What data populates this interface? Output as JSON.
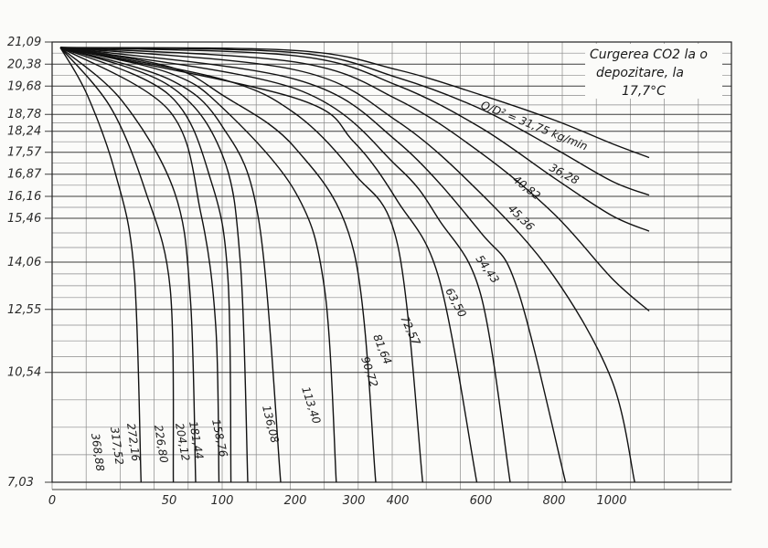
{
  "chart_data": {
    "type": "line",
    "title_lines": [
      "Curgerea CO2 la o",
      "depozitare, la",
      "17,7°C"
    ],
    "y_ticks": [
      "21,09",
      "20,38",
      "19,68",
      "18,78",
      "18,24",
      "17,57",
      "16,87",
      "16,16",
      "15,46",
      "14,06",
      "12,55",
      "10,54",
      "7,03"
    ],
    "x_ticks": [
      "0",
      "50",
      "100",
      "200",
      "300",
      "400",
      "600",
      "800",
      "1000"
    ],
    "grid": true,
    "series": [
      {
        "name": "Q/D² = 31,75 kg/min",
        "points": [
          [
            0,
            21.09
          ],
          [
            200,
            20.82
          ],
          [
            400,
            20.2
          ],
          [
            600,
            19.4
          ],
          [
            800,
            18.6
          ],
          [
            1000,
            17.85
          ],
          [
            1130,
            17.4
          ]
        ]
      },
      {
        "name": "36,28",
        "points": [
          [
            0,
            21.09
          ],
          [
            200,
            20.75
          ],
          [
            400,
            19.95
          ],
          [
            600,
            18.95
          ],
          [
            800,
            17.7
          ],
          [
            1000,
            16.65
          ],
          [
            1130,
            16.2
          ]
        ]
      },
      {
        "name": "40,82",
        "points": [
          [
            0,
            21.09
          ],
          [
            200,
            20.65
          ],
          [
            400,
            19.7
          ],
          [
            600,
            18.35
          ],
          [
            800,
            16.75
          ],
          [
            1000,
            15.55
          ],
          [
            1130,
            15.05
          ]
        ]
      },
      {
        "name": "45,36",
        "points": [
          [
            0,
            21.09
          ],
          [
            200,
            20.45
          ],
          [
            400,
            19.25
          ],
          [
            600,
            17.55
          ],
          [
            800,
            15.6
          ],
          [
            1000,
            13.55
          ],
          [
            1130,
            12.5
          ]
        ]
      },
      {
        "name": "54,43",
        "points": [
          [
            0,
            21.09
          ],
          [
            200,
            20.2
          ],
          [
            400,
            18.55
          ],
          [
            600,
            16.25
          ],
          [
            800,
            13.6
          ],
          [
            1000,
            10.3
          ],
          [
            1080,
            7.03
          ]
        ]
      },
      {
        "name": "63,50",
        "points": [
          [
            0,
            21.09
          ],
          [
            200,
            19.9
          ],
          [
            400,
            17.9
          ],
          [
            600,
            15.0
          ],
          [
            700,
            13.2
          ],
          [
            840,
            7.03
          ]
        ]
      },
      {
        "name": "72,57",
        "points": [
          [
            0,
            21.09
          ],
          [
            200,
            19.6
          ],
          [
            400,
            17.1
          ],
          [
            500,
            15.4
          ],
          [
            600,
            13.0
          ],
          [
            680,
            7.03
          ]
        ]
      },
      {
        "name": "81,64",
        "points": [
          [
            0,
            21.09
          ],
          [
            200,
            19.3
          ],
          [
            300,
            17.9
          ],
          [
            400,
            16.0
          ],
          [
            500,
            13.5
          ],
          [
            590,
            7.03
          ]
        ]
      },
      {
        "name": "90,72",
        "points": [
          [
            0,
            21.09
          ],
          [
            100,
            19.9
          ],
          [
            200,
            18.8
          ],
          [
            300,
            16.9
          ],
          [
            400,
            14.6
          ],
          [
            460,
            7.03
          ]
        ]
      },
      {
        "name": "113,40",
        "points": [
          [
            0,
            21.09
          ],
          [
            50,
            20.3
          ],
          [
            100,
            19.4
          ],
          [
            200,
            17.7
          ],
          [
            300,
            14.4
          ],
          [
            350,
            7.03
          ]
        ]
      },
      {
        "name": "136,08",
        "points": [
          [
            0,
            21.09
          ],
          [
            50,
            20.1
          ],
          [
            100,
            19.0
          ],
          [
            200,
            16.3
          ],
          [
            250,
            13.2
          ],
          [
            270,
            7.03
          ]
        ]
      },
      {
        "name": "158,76",
        "points": [
          [
            0,
            21.09
          ],
          [
            50,
            19.9
          ],
          [
            100,
            18.4
          ],
          [
            150,
            15.4
          ],
          [
            180,
            7.03
          ]
        ]
      },
      {
        "name": "181,44",
        "points": [
          [
            0,
            21.09
          ],
          [
            50,
            19.7
          ],
          [
            100,
            17.5
          ],
          [
            125,
            14.0
          ],
          [
            135,
            7.03
          ]
        ]
      },
      {
        "name": "204,12",
        "points": [
          [
            0,
            21.09
          ],
          [
            50,
            19.4
          ],
          [
            90,
            16.6
          ],
          [
            108,
            13.5
          ],
          [
            112,
            7.03
          ]
        ]
      },
      {
        "name": "226,80",
        "points": [
          [
            0,
            21.09
          ],
          [
            50,
            18.9
          ],
          [
            80,
            15.6
          ],
          [
            94,
            12.0
          ],
          [
            97,
            7.03
          ]
        ]
      },
      {
        "name": "272,16",
        "points": [
          [
            0,
            21.09
          ],
          [
            30,
            19.2
          ],
          [
            55,
            16.3
          ],
          [
            70,
            12.9
          ],
          [
            75,
            7.03
          ]
        ]
      },
      {
        "name": "317,52",
        "points": [
          [
            0,
            21.09
          ],
          [
            25,
            19.0
          ],
          [
            40,
            16.3
          ],
          [
            51,
            13.2
          ],
          [
            54,
            7.03
          ]
        ]
      },
      {
        "name": "368,88",
        "points": [
          [
            0,
            21.09
          ],
          [
            15,
            19.4
          ],
          [
            27,
            16.9
          ],
          [
            35,
            13.8
          ],
          [
            38,
            7.03
          ]
        ]
      }
    ]
  }
}
